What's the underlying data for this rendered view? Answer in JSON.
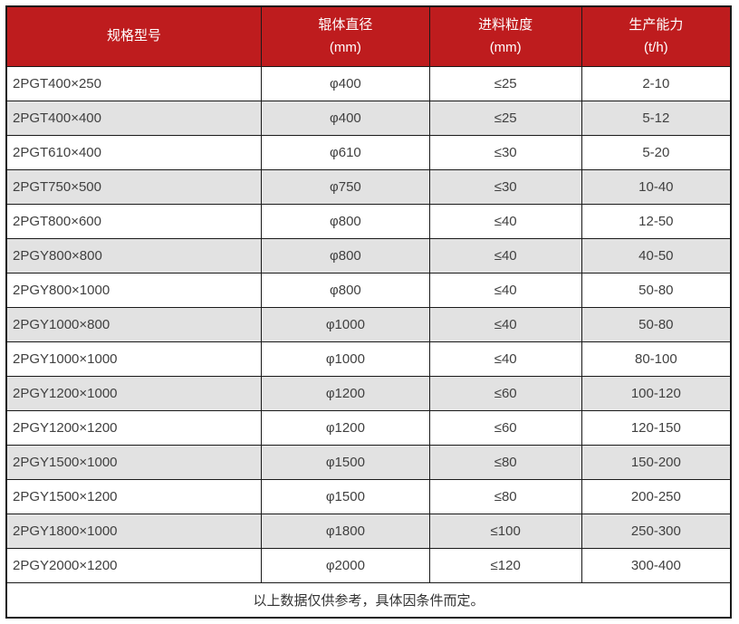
{
  "table": {
    "columns": [
      {
        "title": "规格型号",
        "unit": ""
      },
      {
        "title": "辊体直径",
        "unit": "(mm)"
      },
      {
        "title": "进料粒度",
        "unit": "(mm)"
      },
      {
        "title": "生产能力",
        "unit": "(t/h)"
      }
    ],
    "rows": [
      {
        "model": "2PGT400×250",
        "roller_diameter": "φ400",
        "feed_size": "≤25",
        "capacity": "2-10"
      },
      {
        "model": "2PGT400×400",
        "roller_diameter": "φ400",
        "feed_size": "≤25",
        "capacity": "5-12"
      },
      {
        "model": "2PGT610×400",
        "roller_diameter": "φ610",
        "feed_size": "≤30",
        "capacity": "5-20"
      },
      {
        "model": "2PGT750×500",
        "roller_diameter": "φ750",
        "feed_size": "≤30",
        "capacity": "10-40"
      },
      {
        "model": "2PGT800×600",
        "roller_diameter": "φ800",
        "feed_size": "≤40",
        "capacity": "12-50"
      },
      {
        "model": "2PGY800×800",
        "roller_diameter": "φ800",
        "feed_size": "≤40",
        "capacity": "40-50"
      },
      {
        "model": "2PGY800×1000",
        "roller_diameter": "φ800",
        "feed_size": "≤40",
        "capacity": "50-80"
      },
      {
        "model": "2PGY1000×800",
        "roller_diameter": "φ1000",
        "feed_size": "≤40",
        "capacity": "50-80"
      },
      {
        "model": "2PGY1000×1000",
        "roller_diameter": "φ1000",
        "feed_size": "≤40",
        "capacity": "80-100"
      },
      {
        "model": "2PGY1200×1000",
        "roller_diameter": "φ1200",
        "feed_size": "≤60",
        "capacity": "100-120"
      },
      {
        "model": "2PGY1200×1200",
        "roller_diameter": "φ1200",
        "feed_size": "≤60",
        "capacity": "120-150"
      },
      {
        "model": "2PGY1500×1000",
        "roller_diameter": "φ1500",
        "feed_size": "≤80",
        "capacity": "150-200"
      },
      {
        "model": "2PGY1500×1200",
        "roller_diameter": "φ1500",
        "feed_size": "≤80",
        "capacity": "200-250"
      },
      {
        "model": "2PGY1800×1000",
        "roller_diameter": "φ1800",
        "feed_size": "≤100",
        "capacity": "250-300"
      },
      {
        "model": "2PGY2000×1200",
        "roller_diameter": "φ2000",
        "feed_size": "≤120",
        "capacity": "300-400"
      }
    ],
    "footnote": "以上数据仅供参考，具体因条件而定。"
  },
  "colors": {
    "header_bg": "#be1c1e",
    "header_text": "#ffffff",
    "row_bg": "#ffffff",
    "row_alt_bg": "#e2e2e2",
    "border": "#1a1a1a",
    "body_text": "#404040"
  }
}
